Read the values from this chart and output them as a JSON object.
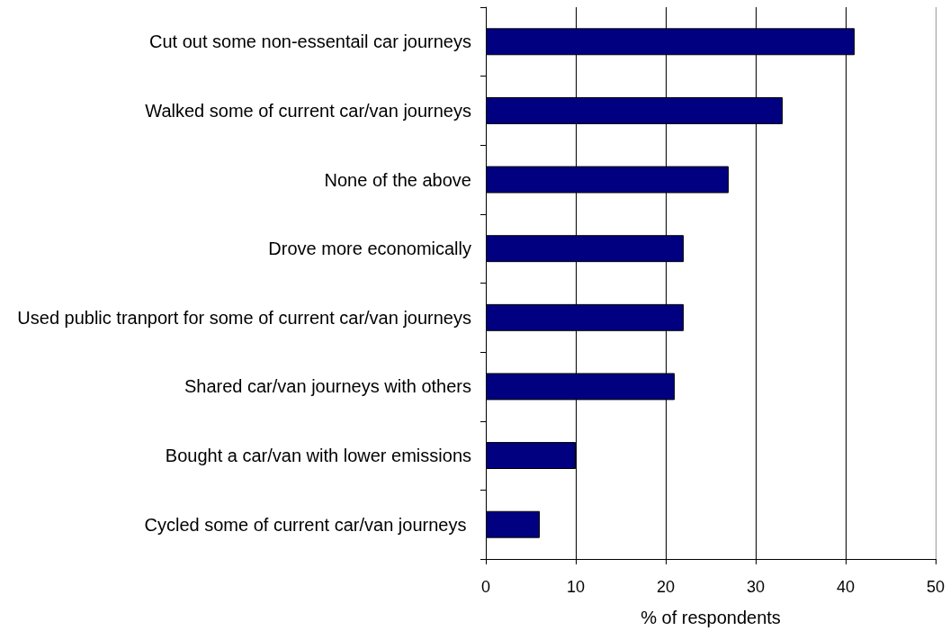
{
  "chart_data": {
    "type": "bar",
    "orientation": "horizontal",
    "categories": [
      "Cut out some non-essentail car journeys",
      "Walked some of current car/van journeys",
      "None of the above",
      "Drove more economically",
      "Used public tranport for some of current car/van journeys",
      "Shared car/van journeys with others",
      "Bought a car/van with lower emissions",
      "Cycled some of current car/van journeys "
    ],
    "values": [
      41,
      33,
      27,
      22,
      22,
      21,
      10,
      6
    ],
    "color": "#000080",
    "xlabel": "% of respondents",
    "xlim": [
      0,
      50
    ],
    "xticks": [
      0,
      10,
      20,
      30,
      40,
      50
    ],
    "grid": "x"
  }
}
